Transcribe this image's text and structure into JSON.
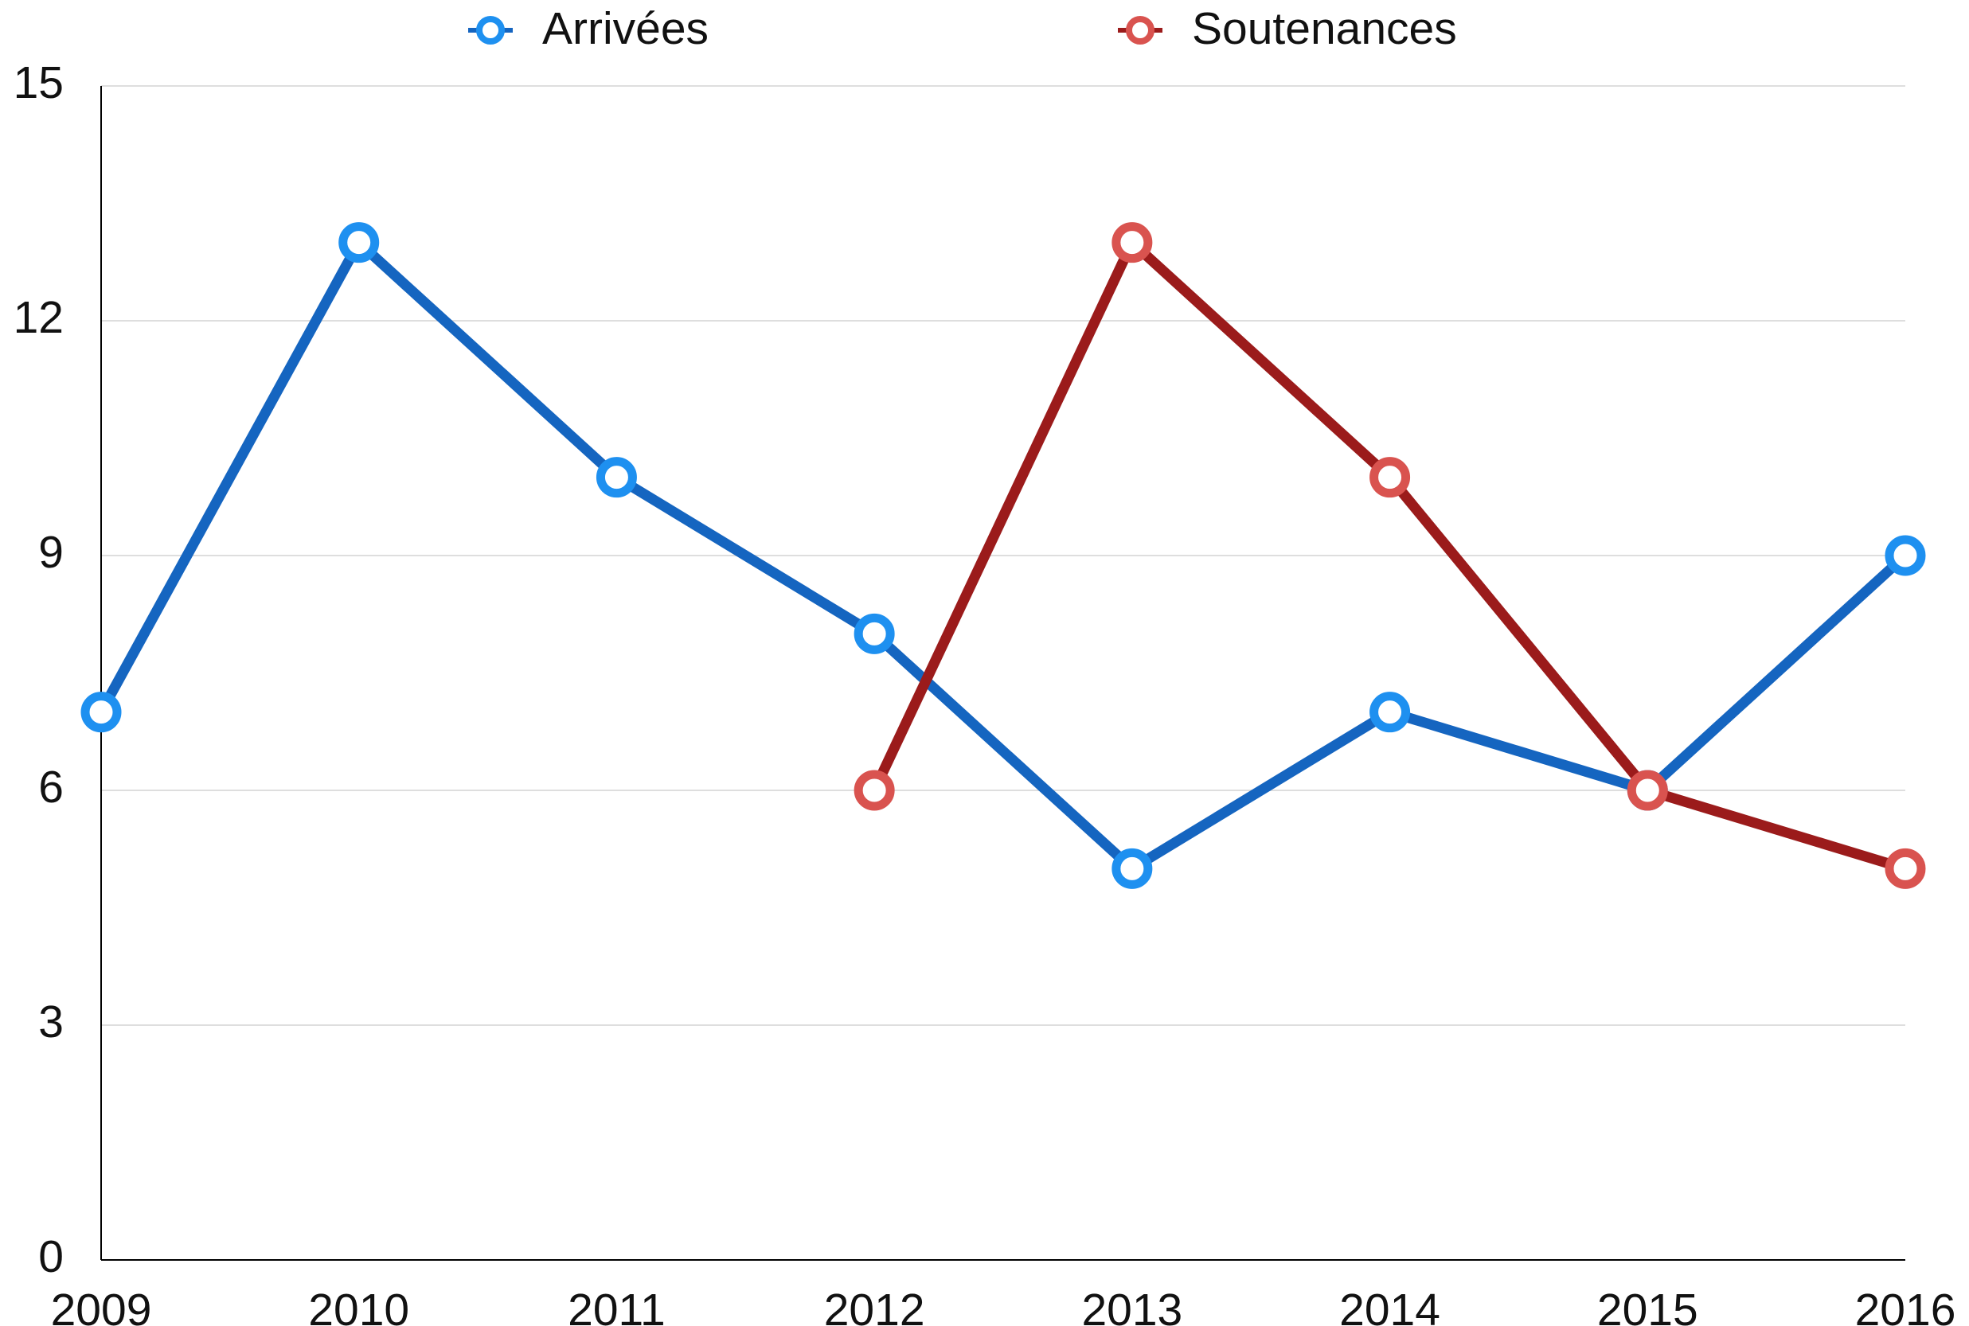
{
  "chart_data": {
    "type": "line",
    "x": [
      2009,
      2010,
      2011,
      2012,
      2013,
      2014,
      2015,
      2016
    ],
    "xlim": [
      2009,
      2016
    ],
    "xticks": [
      2009,
      2010,
      2011,
      2012,
      2013,
      2014,
      2015,
      2016
    ],
    "ylim": [
      0,
      15
    ],
    "yticks": [
      0,
      3,
      6,
      9,
      12,
      15
    ],
    "grid": true,
    "legend": "top",
    "series": [
      {
        "name": "Arrivées",
        "color": "#1565c0",
        "marker_color": "#1e90f0",
        "values": [
          7,
          13,
          10,
          8,
          5,
          7,
          6,
          9
        ]
      },
      {
        "name": "Soutenances",
        "color": "#9b1b1b",
        "marker_color": "#d9534f",
        "values": [
          null,
          null,
          null,
          6,
          13,
          10,
          6,
          5
        ]
      }
    ]
  }
}
